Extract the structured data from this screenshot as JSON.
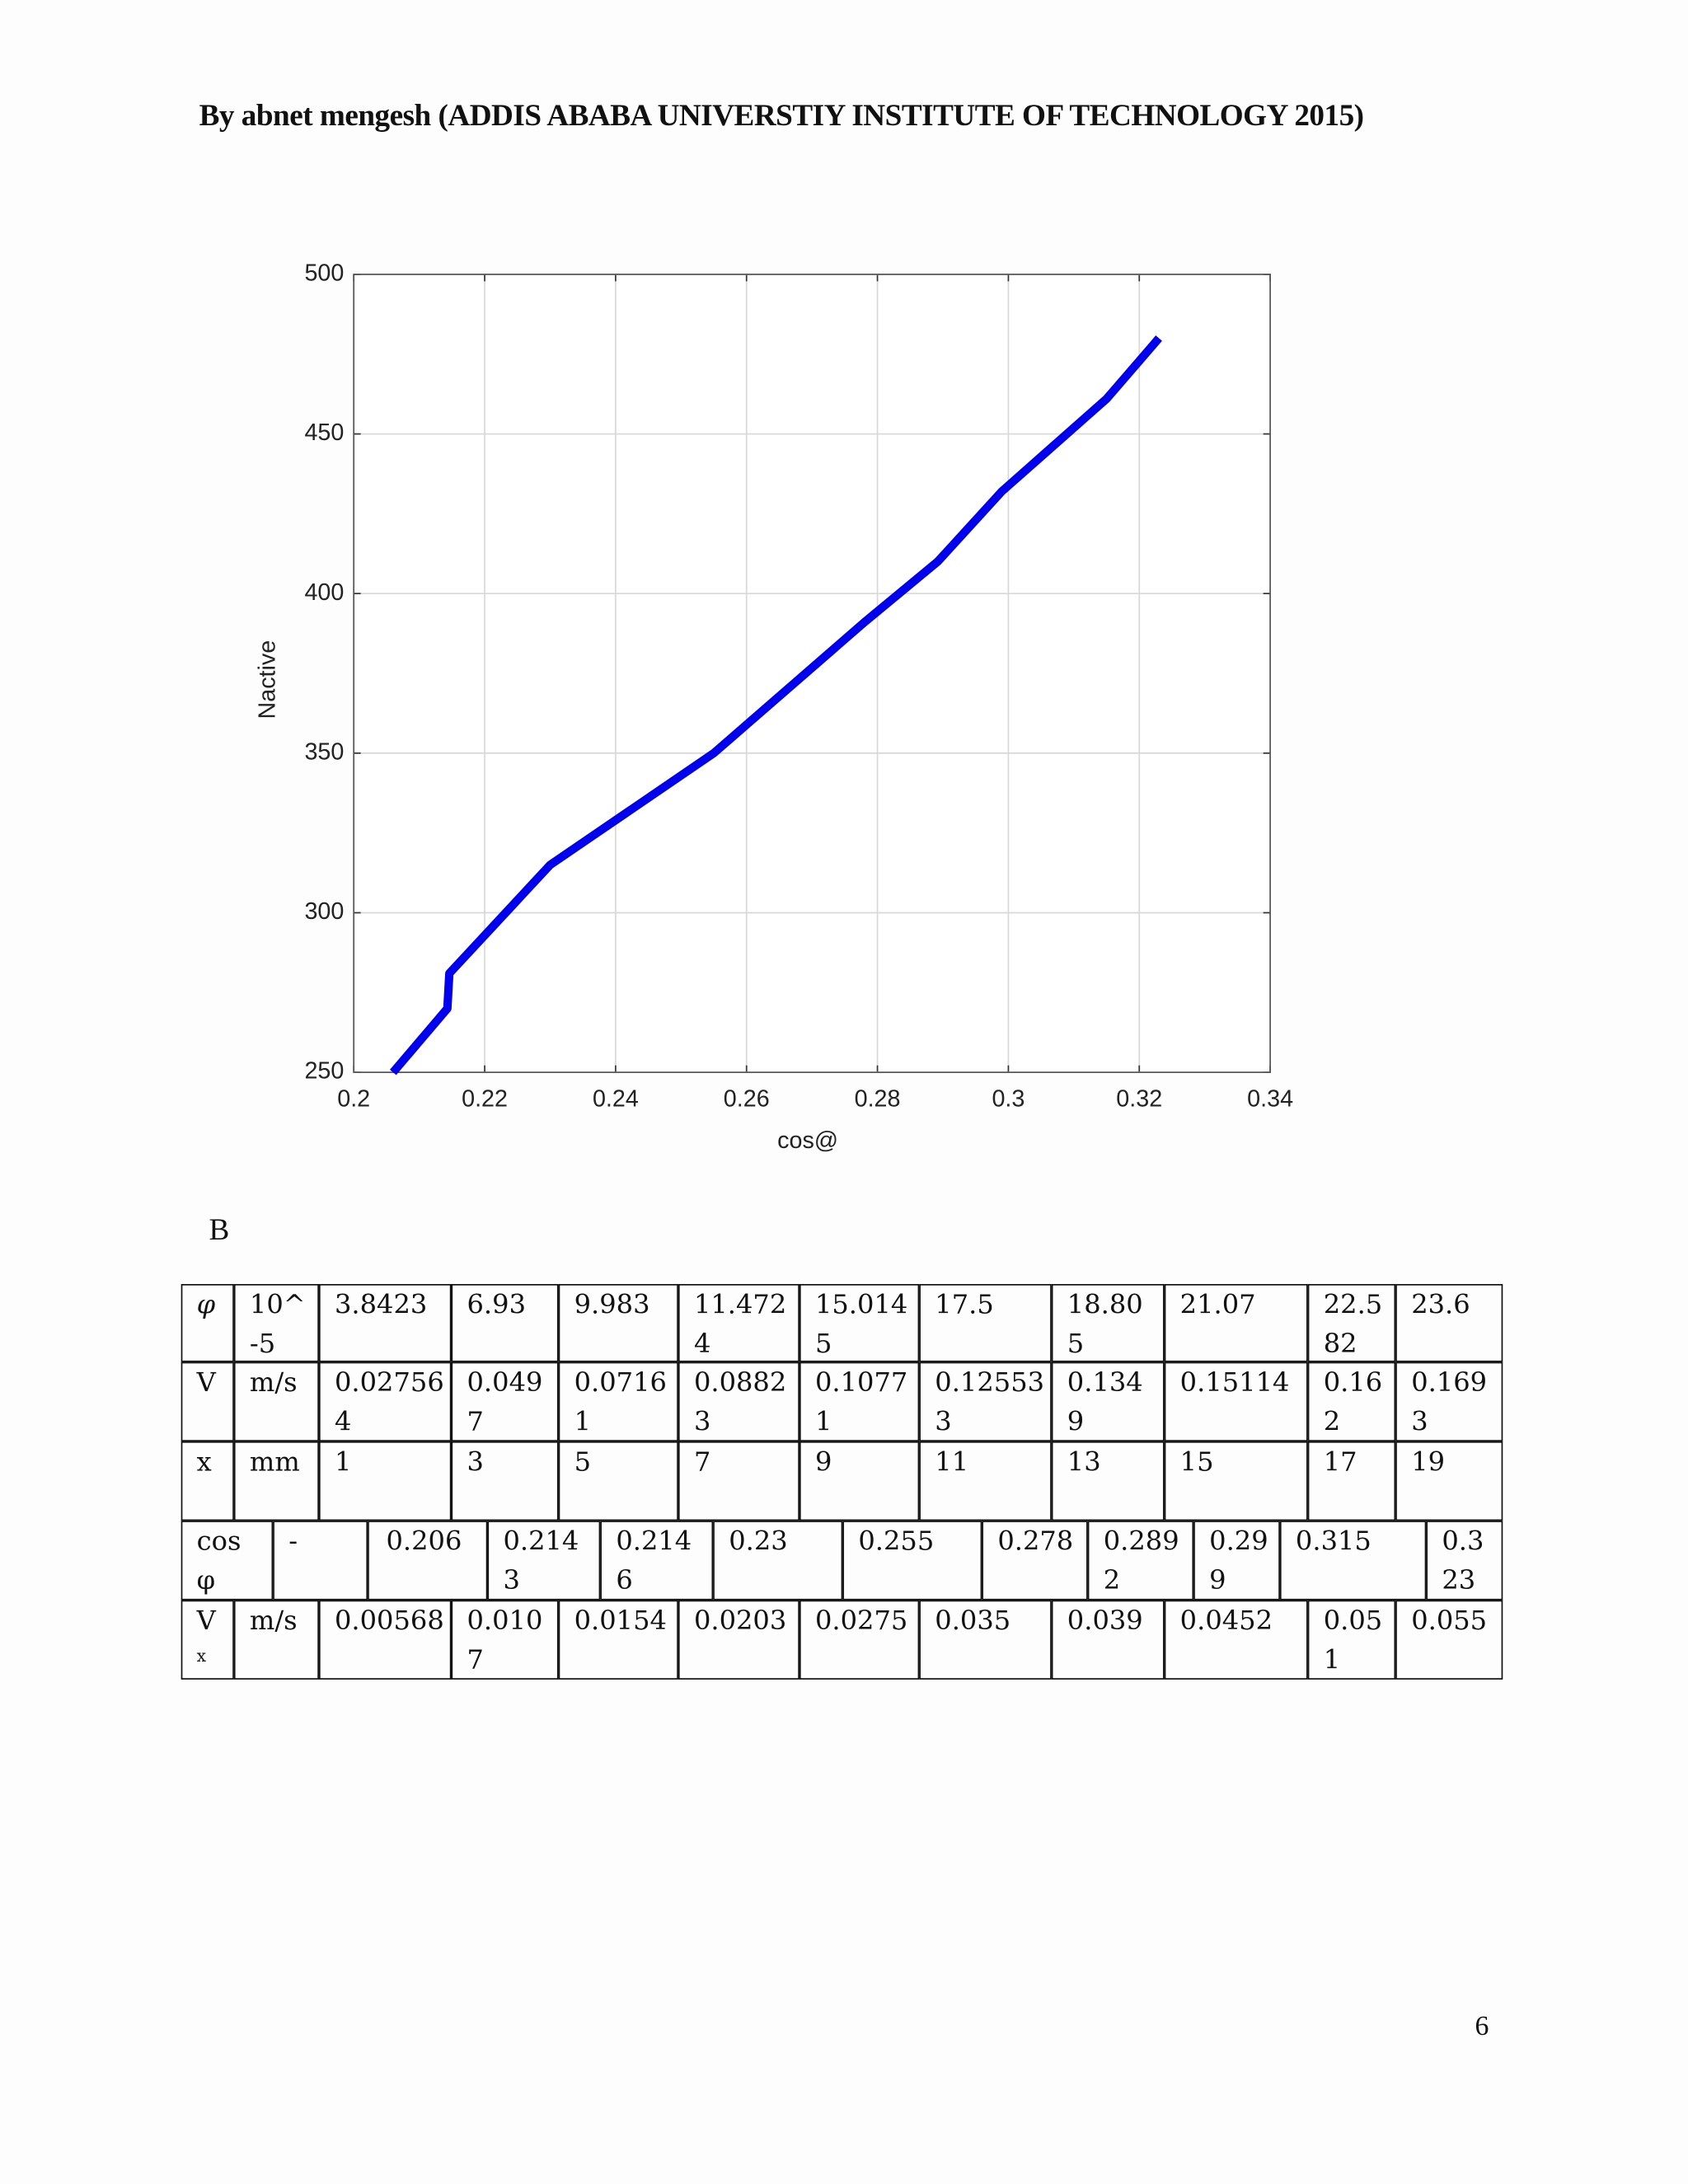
{
  "header": {
    "title": "By abnet mengesh (ADDIS ABABA UNIVERSTIY INSTITUTE OF TECHNOLOGY 2015)"
  },
  "chart_data": {
    "type": "line",
    "x_label": "cos@",
    "y_label": "Nactive",
    "x": [
      0.206,
      0.2143,
      0.2146,
      0.23,
      0.255,
      0.278,
      0.2892,
      0.299,
      0.315,
      0.323
    ],
    "values": [
      250,
      270,
      281,
      315,
      350,
      391,
      410,
      432,
      461,
      480
    ],
    "color": "#0000ee",
    "xlim": [
      0.2,
      0.34
    ],
    "xticks": [
      0.2,
      0.22,
      0.24,
      0.26,
      0.28,
      0.3,
      0.32,
      0.34
    ],
    "ylim": [
      250,
      500
    ],
    "yticks": [
      250,
      300,
      350,
      400,
      450,
      500
    ],
    "grid": true
  },
  "section_label": "B",
  "table": {
    "rows": [
      [
        "φ",
        "10^-5",
        "3.8423",
        "6.93",
        "9.983",
        "11.4724",
        "15.0145",
        "17.5",
        "18.805",
        "21.07",
        "22.582",
        "23.6"
      ],
      [
        "V",
        "m/s",
        "0.027564",
        "0.0497",
        "0.07161",
        "0.08823",
        "0.10771",
        "0.125533",
        "0.1349",
        "0.15114",
        "0.162",
        "0.1693"
      ],
      [
        "x",
        "mm",
        "1",
        "3",
        "5",
        "7",
        "9",
        "11",
        "13",
        "15",
        "17",
        "19"
      ],
      [
        "cos φ",
        "-",
        "0.206",
        "0.2143",
        "0.2146",
        "0.23",
        "0.255",
        "0.278",
        "0.2892",
        "0.299",
        "0.315",
        "0.323"
      ],
      [
        {
          "text": "V",
          "sub": "x"
        },
        "m/s",
        "0.00568",
        "0.0107",
        "0.0154",
        "0.0203",
        "0.0275",
        "0.035",
        "0.039",
        "0.0452",
        "0.051",
        "0.055"
      ]
    ]
  },
  "page_number": "6"
}
